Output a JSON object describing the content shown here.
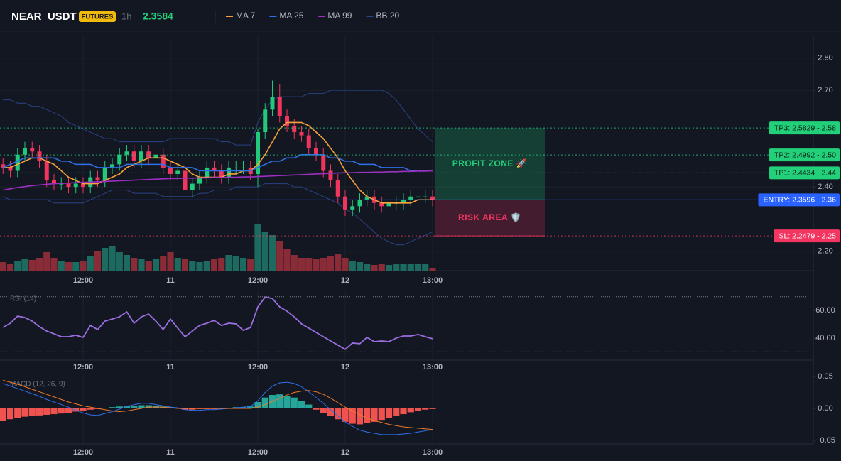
{
  "header": {
    "symbol": "NEAR_USDT",
    "badge": "FUTURES",
    "interval": "1h",
    "price": 2.3584
  },
  "chart_data": [
    {
      "type": "candlestick",
      "categories": [
        null,
        null,
        null,
        null,
        null,
        null,
        null,
        null,
        null,
        null,
        null,
        "12:00",
        null,
        null,
        null,
        null,
        null,
        null,
        null,
        null,
        null,
        null,
        null,
        "11",
        null,
        null,
        null,
        null,
        null,
        null,
        null,
        null,
        null,
        null,
        null,
        "12:00",
        null,
        null,
        null,
        null,
        null,
        null,
        null,
        null,
        null,
        null,
        null,
        "12",
        null,
        null,
        null,
        null,
        null,
        null,
        null,
        null,
        null,
        null,
        null,
        "13:00"
      ],
      "open": [
        2.47,
        2.46,
        2.45,
        2.5,
        2.52,
        2.51,
        2.48,
        2.42,
        2.41,
        2.41,
        2.4,
        2.41,
        2.4,
        2.43,
        2.42,
        2.46,
        2.47,
        2.5,
        2.51,
        2.48,
        2.51,
        2.49,
        2.5,
        2.46,
        2.44,
        2.45,
        2.39,
        2.41,
        2.43,
        2.46,
        2.45,
        2.43,
        2.46,
        2.46,
        2.46,
        2.44,
        2.57,
        2.64,
        2.68,
        2.62,
        2.59,
        2.57,
        2.56,
        2.52,
        2.5,
        2.45,
        2.42,
        2.37,
        2.33,
        2.34,
        2.36,
        2.37,
        2.35,
        2.34,
        2.35,
        2.35,
        2.36,
        2.37,
        2.37,
        2.37
      ],
      "high": [
        2.49,
        2.48,
        2.52,
        2.54,
        2.54,
        2.53,
        2.5,
        2.44,
        2.43,
        2.43,
        2.43,
        2.43,
        2.45,
        2.45,
        2.48,
        2.49,
        2.52,
        2.53,
        2.53,
        2.53,
        2.53,
        2.52,
        2.52,
        2.48,
        2.47,
        2.47,
        2.43,
        2.45,
        2.48,
        2.48,
        2.47,
        2.48,
        2.48,
        2.48,
        2.48,
        2.58,
        2.66,
        2.73,
        2.72,
        2.64,
        2.61,
        2.59,
        2.58,
        2.54,
        2.52,
        2.47,
        2.44,
        2.39,
        2.36,
        2.38,
        2.39,
        2.39,
        2.37,
        2.37,
        2.37,
        2.38,
        2.39,
        2.39,
        2.39,
        2.39
      ],
      "low": [
        2.44,
        2.43,
        2.43,
        2.48,
        2.49,
        2.46,
        2.4,
        2.39,
        2.39,
        2.38,
        2.38,
        2.38,
        2.38,
        2.4,
        2.4,
        2.44,
        2.45,
        2.48,
        2.46,
        2.46,
        2.47,
        2.47,
        2.44,
        2.42,
        2.42,
        2.37,
        2.37,
        2.39,
        2.41,
        2.43,
        2.41,
        2.41,
        2.44,
        2.44,
        2.42,
        2.4,
        2.55,
        2.62,
        2.6,
        2.57,
        2.55,
        2.54,
        2.5,
        2.48,
        2.43,
        2.4,
        2.35,
        2.31,
        2.31,
        2.32,
        2.34,
        2.33,
        2.32,
        2.32,
        2.33,
        2.33,
        2.34,
        2.35,
        2.35,
        2.34
      ],
      "close": [
        2.46,
        2.45,
        2.5,
        2.52,
        2.51,
        2.48,
        2.42,
        2.41,
        2.41,
        2.4,
        2.41,
        2.4,
        2.43,
        2.42,
        2.46,
        2.47,
        2.5,
        2.51,
        2.48,
        2.51,
        2.49,
        2.5,
        2.46,
        2.44,
        2.45,
        2.39,
        2.41,
        2.43,
        2.46,
        2.45,
        2.43,
        2.46,
        2.46,
        2.46,
        2.44,
        2.57,
        2.64,
        2.68,
        2.62,
        2.59,
        2.57,
        2.56,
        2.52,
        2.5,
        2.45,
        2.42,
        2.37,
        2.33,
        2.34,
        2.36,
        2.37,
        2.35,
        2.34,
        2.35,
        2.35,
        2.36,
        2.37,
        2.37,
        2.37,
        2.36
      ],
      "volume": [
        12,
        10,
        14,
        16,
        15,
        18,
        26,
        18,
        14,
        12,
        12,
        14,
        20,
        28,
        32,
        35,
        26,
        22,
        18,
        16,
        14,
        16,
        20,
        26,
        18,
        16,
        14,
        12,
        14,
        16,
        18,
        22,
        20,
        18,
        16,
        65,
        55,
        50,
        42,
        30,
        22,
        18,
        18,
        16,
        18,
        20,
        24,
        18,
        14,
        12,
        10,
        8,
        9,
        8,
        9,
        9,
        10,
        9,
        10,
        4
      ],
      "up_color": "#22c97a",
      "down_color": "#f0355f",
      "volume_up_color": "#1d6b60",
      "volume_down_color": "#8a2b38",
      "ylim": [
        2.14,
        2.87
      ],
      "yticks": [
        {
          "value": 2.2,
          "label": "2.20"
        },
        {
          "value": 2.4,
          "label": "2.40"
        },
        {
          "value": 2.7,
          "label": "2.70"
        },
        {
          "value": 2.8,
          "label": "2.80"
        }
      ],
      "grid": true,
      "series": [
        {
          "name": "MA 7",
          "color": "#f7a23b",
          "values": [
            2.46,
            2.46,
            2.47,
            2.48,
            2.49,
            2.49,
            2.48,
            2.47,
            2.45,
            2.43,
            2.42,
            2.41,
            2.41,
            2.41,
            2.42,
            2.43,
            2.44,
            2.46,
            2.47,
            2.48,
            2.49,
            2.49,
            2.49,
            2.48,
            2.47,
            2.46,
            2.44,
            2.43,
            2.43,
            2.43,
            2.43,
            2.44,
            2.44,
            2.45,
            2.45,
            2.47,
            2.5,
            2.54,
            2.58,
            2.6,
            2.6,
            2.6,
            2.59,
            2.57,
            2.55,
            2.52,
            2.49,
            2.45,
            2.42,
            2.39,
            2.37,
            2.36,
            2.35,
            2.35,
            2.35,
            2.35,
            2.35,
            2.36,
            2.36,
            2.36
          ]
        },
        {
          "name": "MA 25",
          "color": "#2f6fe8",
          "values": [
            2.46,
            2.47,
            2.48,
            2.49,
            2.49,
            2.49,
            2.49,
            2.49,
            2.48,
            2.48,
            2.47,
            2.47,
            2.47,
            2.46,
            2.46,
            2.46,
            2.46,
            2.47,
            2.47,
            2.47,
            2.47,
            2.47,
            2.47,
            2.46,
            2.46,
            2.46,
            2.46,
            2.45,
            2.45,
            2.45,
            2.45,
            2.45,
            2.45,
            2.45,
            2.45,
            2.46,
            2.47,
            2.48,
            2.48,
            2.49,
            2.49,
            2.5,
            2.5,
            2.5,
            2.5,
            2.49,
            2.49,
            2.48,
            2.48,
            2.47,
            2.47,
            2.47,
            2.46,
            2.46,
            2.46,
            2.46,
            2.45,
            2.45,
            2.45,
            2.45
          ]
        },
        {
          "name": "MA 99",
          "color": "#9c2fc2",
          "values": [
            2.39,
            2.394,
            2.398,
            2.401,
            2.404,
            2.406,
            2.408,
            2.41,
            2.411,
            2.412,
            2.413,
            2.414,
            2.415,
            2.416,
            2.417,
            2.418,
            2.419,
            2.42,
            2.421,
            2.422,
            2.423,
            2.424,
            2.425,
            2.426,
            2.426,
            2.427,
            2.427,
            2.428,
            2.428,
            2.429,
            2.429,
            2.43,
            2.43,
            2.431,
            2.431,
            2.432,
            2.433,
            2.434,
            2.435,
            2.436,
            2.437,
            2.438,
            2.439,
            2.44,
            2.441,
            2.442,
            2.443,
            2.444,
            2.444,
            2.445,
            2.445,
            2.446,
            2.446,
            2.447,
            2.447,
            2.448,
            2.448,
            2.449,
            2.449,
            2.45
          ]
        },
        {
          "name": "BB 20",
          "color": "#2a4384",
          "upper": [
            2.67,
            2.67,
            2.66,
            2.66,
            2.65,
            2.65,
            2.64,
            2.63,
            2.62,
            2.6,
            2.59,
            2.58,
            2.57,
            2.56,
            2.55,
            2.55,
            2.54,
            2.54,
            2.54,
            2.54,
            2.54,
            2.54,
            2.54,
            2.55,
            2.55,
            2.55,
            2.55,
            2.55,
            2.55,
            2.55,
            2.54,
            2.54,
            2.53,
            2.53,
            2.53,
            2.6,
            2.64,
            2.67,
            2.68,
            2.68,
            2.68,
            2.68,
            2.69,
            2.69,
            2.69,
            2.7,
            2.7,
            2.7,
            2.7,
            2.7,
            2.7,
            2.7,
            2.7,
            2.69,
            2.67,
            2.64,
            2.61,
            2.58,
            2.56,
            2.54
          ],
          "lower": [
            2.37,
            2.36,
            2.36,
            2.36,
            2.36,
            2.36,
            2.36,
            2.35,
            2.35,
            2.35,
            2.35,
            2.35,
            2.36,
            2.37,
            2.38,
            2.39,
            2.39,
            2.39,
            2.38,
            2.38,
            2.38,
            2.38,
            2.37,
            2.37,
            2.37,
            2.37,
            2.37,
            2.38,
            2.38,
            2.39,
            2.39,
            2.39,
            2.4,
            2.4,
            2.4,
            2.4,
            2.41,
            2.41,
            2.41,
            2.41,
            2.4,
            2.4,
            2.39,
            2.38,
            2.37,
            2.36,
            2.35,
            2.33,
            2.32,
            2.3,
            2.28,
            2.26,
            2.24,
            2.23,
            2.22,
            2.22,
            2.23,
            2.24,
            2.25,
            2.26
          ]
        }
      ],
      "levels": [
        {
          "value": 2.5829,
          "label": "TP3: 2.5829 - 2.58",
          "color": "#22d07a"
        },
        {
          "value": 2.4992,
          "label": "TP2: 2.4992 - 2.50",
          "color": "#22d07a"
        },
        {
          "value": 2.4434,
          "label": "TP1: 2.4434 - 2.44",
          "color": "#22d07a"
        },
        {
          "value": 2.3596,
          "label": "ENTRY: 2.3596 - 2.36",
          "color": "#2962ff"
        },
        {
          "value": 2.2479,
          "label": "SL: 2.2479 - 2.25",
          "color": "#f23661"
        }
      ],
      "zones": [
        {
          "label": "PROFIT ZONE 🚀",
          "color": "#22d07a"
        },
        {
          "label": "RISK AREA 🛡️",
          "color": "#f23661"
        }
      ]
    },
    {
      "type": "line",
      "title": "RSI (14)",
      "categories": [
        null,
        null,
        null,
        null,
        null,
        null,
        null,
        null,
        null,
        null,
        null,
        "12:00",
        null,
        null,
        null,
        null,
        null,
        null,
        null,
        null,
        null,
        null,
        null,
        "11",
        null,
        null,
        null,
        null,
        null,
        null,
        null,
        null,
        null,
        null,
        null,
        "12:00",
        null,
        null,
        null,
        null,
        null,
        null,
        null,
        null,
        null,
        null,
        null,
        "12",
        null,
        null,
        null,
        null,
        null,
        null,
        null,
        null,
        null,
        null,
        null,
        "13:00"
      ],
      "values": [
        47.7,
        50.8,
        55.9,
        54.9,
        52.3,
        48.2,
        45.1,
        43.1,
        41.0,
        41.0,
        42.1,
        40.5,
        49.2,
        46.2,
        52.3,
        53.8,
        55.4,
        59.0,
        50.8,
        55.4,
        57.4,
        52.3,
        46.2,
        53.8,
        47.2,
        41.0,
        45.1,
        49.2,
        50.8,
        52.8,
        49.2,
        50.8,
        50.3,
        45.6,
        47.7,
        62.6,
        69.7,
        68.7,
        62.6,
        59.5,
        55.4,
        50.3,
        47.2,
        44.1,
        41.0,
        37.9,
        34.9,
        31.8,
        36.4,
        35.9,
        40.5,
        37.4,
        37.9,
        37.4,
        40.0,
        41.5,
        41.5,
        42.6,
        41.0,
        39.5
      ],
      "color": "#9a6ee0",
      "ylim": [
        24,
        75
      ],
      "yticks": [
        {
          "value": 40,
          "label": "40.00"
        },
        {
          "value": 60,
          "label": "60.00"
        }
      ],
      "levels": [
        70,
        30
      ]
    },
    {
      "type": "macd",
      "title": "MACD (12, 26, 9)",
      "categories": [
        null,
        null,
        null,
        null,
        null,
        null,
        null,
        null,
        null,
        null,
        null,
        "12:00",
        null,
        null,
        null,
        null,
        null,
        null,
        null,
        null,
        null,
        null,
        null,
        "11",
        null,
        null,
        null,
        null,
        null,
        null,
        null,
        null,
        null,
        null,
        null,
        "12:00",
        null,
        null,
        null,
        null,
        null,
        null,
        null,
        null,
        null,
        null,
        null,
        "12",
        null,
        null,
        null,
        null,
        null,
        null,
        null,
        null,
        null,
        null,
        null,
        "13:00"
      ],
      "histogram": [
        -0.019,
        -0.017,
        -0.015,
        -0.013,
        -0.012,
        -0.011,
        -0.01,
        -0.009,
        -0.008,
        -0.007,
        -0.005,
        -0.004,
        -0.002,
        -0.001,
        0.001,
        0.002,
        0.003,
        0.004,
        0.004,
        0.005,
        0.005,
        0.004,
        0.003,
        0.002,
        0.001,
        -0.002,
        -0.002,
        -0.001,
        -0.001,
        -0.001,
        0.001,
        0.001,
        0.002,
        0.002,
        0.003,
        0.01,
        0.017,
        0.021,
        0.022,
        0.02,
        0.017,
        0.012,
        0.006,
        -0.002,
        -0.007,
        -0.012,
        -0.017,
        -0.021,
        -0.024,
        -0.025,
        -0.023,
        -0.021,
        -0.018,
        -0.015,
        -0.012,
        -0.009,
        -0.006,
        -0.004,
        -0.002,
        -0.001
      ],
      "macd": [
        0.039,
        0.035,
        0.031,
        0.027,
        0.023,
        0.019,
        0.014,
        0.01,
        0.006,
        0.002,
        -0.003,
        -0.007,
        -0.01,
        -0.011,
        -0.008,
        -0.005,
        -0.001,
        0.003,
        0.006,
        0.008,
        0.008,
        0.006,
        0.004,
        0.002,
        0.001,
        -0.002,
        -0.003,
        -0.003,
        -0.002,
        -0.002,
        -0.001,
        0.0,
        0.001,
        0.002,
        0.003,
        0.012,
        0.025,
        0.035,
        0.04,
        0.041,
        0.039,
        0.034,
        0.026,
        0.017,
        0.008,
        -0.002,
        -0.012,
        -0.021,
        -0.028,
        -0.034,
        -0.037,
        -0.039,
        -0.041,
        -0.041,
        -0.041,
        -0.04,
        -0.039,
        -0.037,
        -0.035,
        -0.033
      ],
      "signal": [
        0.044,
        0.041,
        0.038,
        0.034,
        0.03,
        0.026,
        0.022,
        0.018,
        0.014,
        0.01,
        0.007,
        0.004,
        0.002,
        0.0,
        -0.002,
        -0.004,
        -0.005,
        -0.004,
        -0.002,
        0.0,
        0.002,
        0.002,
        0.002,
        0.001,
        0.0,
        0.0,
        0.0,
        0.0,
        0.0,
        0.0,
        0.0,
        0.0,
        0.0,
        0.0,
        0.0,
        0.002,
        0.006,
        0.011,
        0.016,
        0.021,
        0.025,
        0.027,
        0.028,
        0.026,
        0.022,
        0.016,
        0.009,
        0.002,
        -0.004,
        -0.01,
        -0.015,
        -0.019,
        -0.022,
        -0.025,
        -0.027,
        -0.029,
        -0.03,
        -0.031,
        -0.032,
        -0.033
      ],
      "macd_color": "#2f6fe8",
      "signal_color": "#f07a2a",
      "up_color": "#26a69a",
      "down_color": "#ef5350",
      "ylim": [
        -0.0556,
        0.0522
      ],
      "yticks": [
        {
          "value": -0.05,
          "label": "−0.05"
        },
        {
          "value": 0,
          "label": "0.00"
        },
        {
          "value": 0.05,
          "label": "0.05"
        }
      ]
    }
  ]
}
